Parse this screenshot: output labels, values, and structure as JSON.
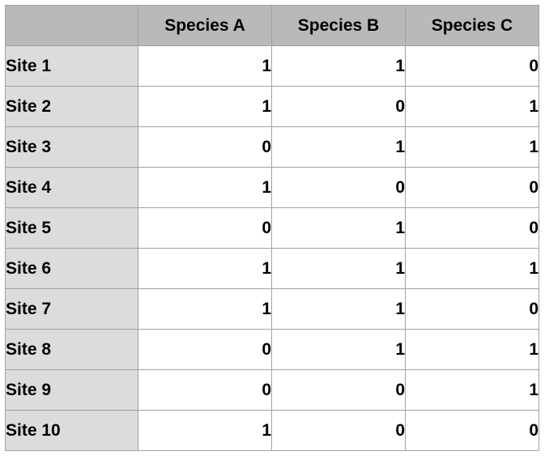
{
  "table": {
    "corner_label": "",
    "columns": [
      "Species A",
      "Species B",
      "Species C"
    ],
    "rows": [
      {
        "label": "Site 1",
        "values": [
          "1",
          "1",
          "0"
        ]
      },
      {
        "label": "Site 2",
        "values": [
          "1",
          "0",
          "1"
        ]
      },
      {
        "label": "Site 3",
        "values": [
          "0",
          "1",
          "1"
        ]
      },
      {
        "label": "Site 4",
        "values": [
          "1",
          "0",
          "0"
        ]
      },
      {
        "label": "Site 5",
        "values": [
          "0",
          "1",
          "0"
        ]
      },
      {
        "label": "Site 6",
        "values": [
          "1",
          "1",
          "1"
        ]
      },
      {
        "label": "Site 7",
        "values": [
          "1",
          "1",
          "0"
        ]
      },
      {
        "label": "Site 8",
        "values": [
          "0",
          "1",
          "1"
        ]
      },
      {
        "label": "Site 9",
        "values": [
          "0",
          "0",
          "1"
        ]
      },
      {
        "label": "Site 10",
        "values": [
          "1",
          "0",
          "0"
        ]
      }
    ]
  },
  "chart_data": {
    "type": "table",
    "title": "",
    "columns": [
      "",
      "Species A",
      "Species B",
      "Species C"
    ],
    "rows": [
      [
        "Site 1",
        1,
        1,
        0
      ],
      [
        "Site 2",
        1,
        0,
        1
      ],
      [
        "Site 3",
        0,
        1,
        1
      ],
      [
        "Site 4",
        1,
        0,
        0
      ],
      [
        "Site 5",
        0,
        1,
        0
      ],
      [
        "Site 6",
        1,
        1,
        1
      ],
      [
        "Site 7",
        1,
        1,
        0
      ],
      [
        "Site 8",
        0,
        1,
        1
      ],
      [
        "Site 9",
        0,
        0,
        1
      ],
      [
        "Site 10",
        1,
        0,
        0
      ]
    ]
  },
  "colors": {
    "header_bg": "#b9b9b9",
    "row_header_bg": "#dcdcdc",
    "cell_bg": "#ffffff",
    "border": "#a1a1a1",
    "text": "#000000"
  }
}
